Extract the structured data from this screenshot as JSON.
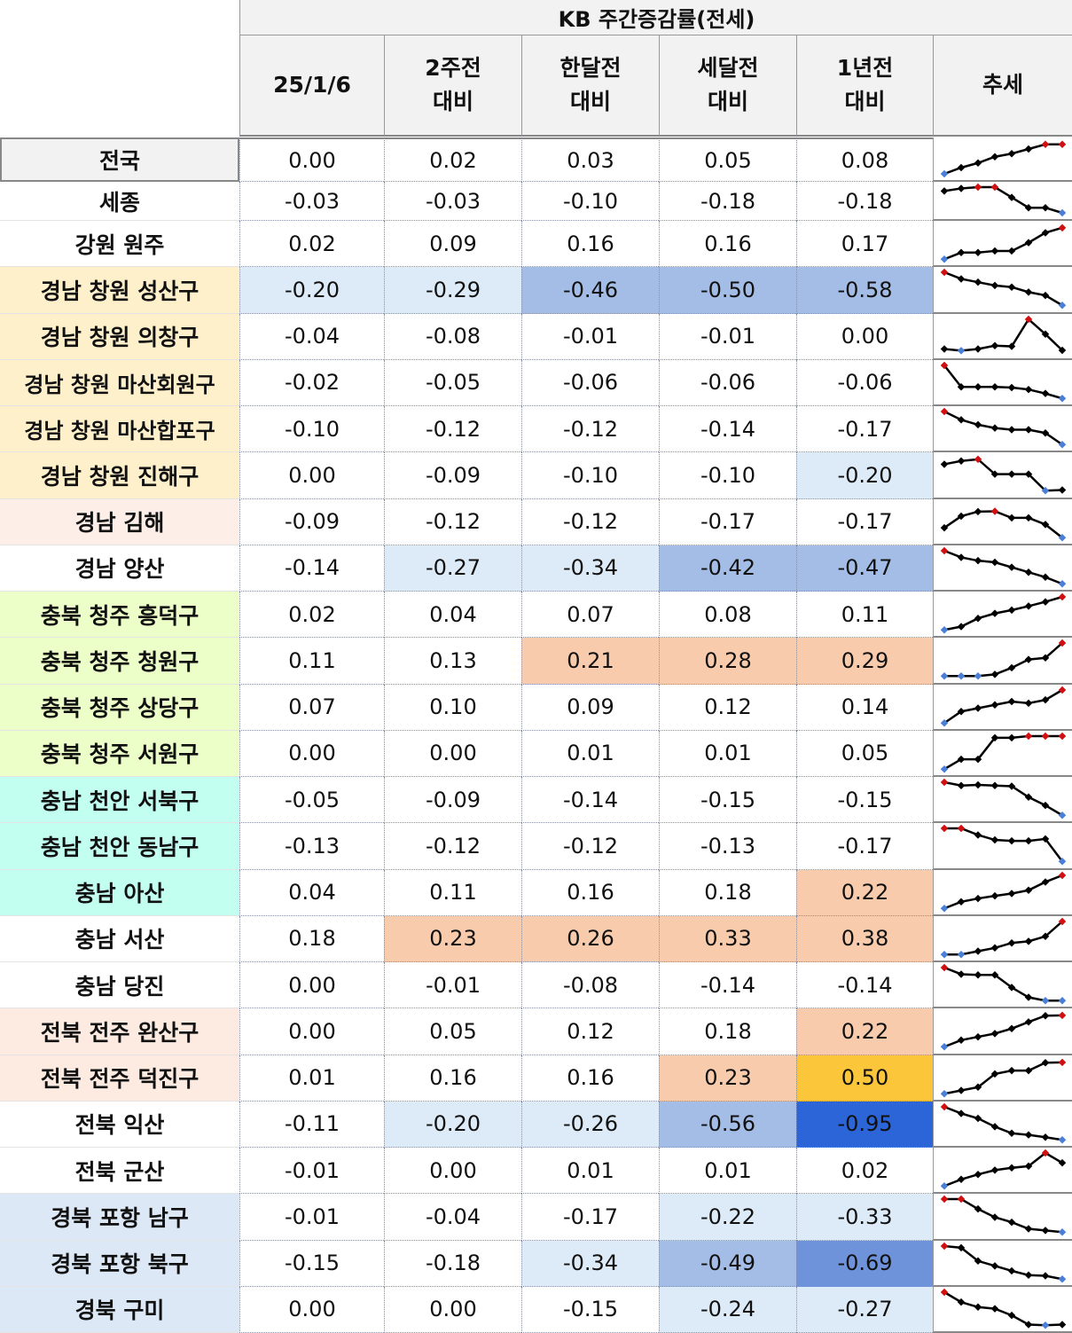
{
  "title": "KB 주간증감률(전세)",
  "headers": [
    "25/1/6",
    "2주전\n대비",
    "한달전\n대비",
    "세달전\n대비",
    "1년전\n대비",
    "추세"
  ],
  "colors": {
    "label_national": "#f2f2f2",
    "label_changwon": "#fff0cc",
    "label_gimhae": "#fdeee8",
    "label_chungbuk": "#ecffc8",
    "label_chungnam": "#c2fff0",
    "label_jeonju": "#fdebe2",
    "label_gyeongbuk": "#dce8f5",
    "neg_light": "#ddeaf7",
    "neg_mid": "#a4bde6",
    "neg_strong": "#6f93db",
    "neg_max": "#2b65d8",
    "pos_mid": "#f8cbad",
    "pos_max": "#fbc63a",
    "trend_max": "#d01010",
    "trend_min": "#4a7fd8"
  },
  "rows": [
    {
      "label": "전국",
      "group": "national",
      "values": [
        "0.00",
        "0.02",
        "0.03",
        "0.05",
        "0.08"
      ],
      "trend": [
        0,
        0.2,
        0.35,
        0.55,
        0.65,
        0.8,
        0.95,
        0.95
      ]
    },
    {
      "label": "세종",
      "group": "",
      "values": [
        "-0.03",
        "-0.03",
        "-0.10",
        "-0.18",
        "-0.18"
      ],
      "trend": [
        0.85,
        0.95,
        1,
        1,
        0.6,
        0.2,
        0.2,
        0
      ]
    },
    {
      "label": "강원 원주",
      "group": "",
      "values": [
        "0.02",
        "0.09",
        "0.16",
        "0.16",
        "0.17"
      ],
      "trend": [
        0,
        0.2,
        0.2,
        0.25,
        0.25,
        0.5,
        0.8,
        0.95
      ]
    },
    {
      "label": "경남 창원 성산구",
      "group": "changwon",
      "values": [
        "-0.20",
        "-0.29",
        "-0.46",
        "-0.50",
        "-0.58"
      ],
      "trend": [
        1,
        0.8,
        0.7,
        0.6,
        0.55,
        0.4,
        0.3,
        0
      ]
    },
    {
      "label": "경남 창원 의창구",
      "group": "changwon",
      "values": [
        "-0.04",
        "-0.08",
        "-0.01",
        "-0.01",
        "0.00"
      ],
      "trend": [
        0.1,
        0.05,
        0.1,
        0.2,
        0.18,
        1,
        0.55,
        0.06
      ]
    },
    {
      "label": "경남 창원 마산회원구",
      "group": "changwon",
      "values": [
        "-0.02",
        "-0.05",
        "-0.06",
        "-0.06",
        "-0.06"
      ],
      "trend": [
        1,
        0.35,
        0.35,
        0.35,
        0.33,
        0.27,
        0.15,
        0
      ]
    },
    {
      "label": "경남 창원 마산합포구",
      "group": "changwon",
      "values": [
        "-0.10",
        "-0.12",
        "-0.12",
        "-0.14",
        "-0.17"
      ],
      "trend": [
        1,
        0.75,
        0.6,
        0.5,
        0.45,
        0.45,
        0.35,
        0
      ]
    },
    {
      "label": "경남 창원 진해구",
      "group": "changwon",
      "values": [
        "0.00",
        "-0.09",
        "-0.10",
        "-0.10",
        "-0.20"
      ],
      "trend": [
        0.8,
        0.9,
        0.95,
        0.5,
        0.5,
        0.5,
        0,
        0.02
      ]
    },
    {
      "label": "경남 김해",
      "group": "gimhae",
      "values": [
        "-0.09",
        "-0.12",
        "-0.12",
        "-0.17",
        "-0.17"
      ],
      "trend": [
        0.3,
        0.65,
        0.79,
        0.8,
        0.6,
        0.6,
        0.4,
        0
      ]
    },
    {
      "label": "경남 양산",
      "group": "",
      "values": [
        "-0.14",
        "-0.27",
        "-0.34",
        "-0.42",
        "-0.47"
      ],
      "trend": [
        1,
        0.8,
        0.7,
        0.65,
        0.5,
        0.35,
        0.2,
        0
      ]
    },
    {
      "label": "충북 청주 흥덕구",
      "group": "chungbuk",
      "values": [
        "0.02",
        "0.04",
        "0.07",
        "0.08",
        "0.11"
      ],
      "trend": [
        0,
        0.1,
        0.35,
        0.5,
        0.6,
        0.72,
        0.85,
        1
      ]
    },
    {
      "label": "충북 청주 청원구",
      "group": "chungbuk",
      "values": [
        "0.11",
        "0.13",
        "0.21",
        "0.28",
        "0.29"
      ],
      "trend": [
        0,
        0,
        0,
        0.05,
        0.25,
        0.5,
        0.55,
        1
      ]
    },
    {
      "label": "충북 청주 상당구",
      "group": "chungbuk",
      "values": [
        "0.07",
        "0.10",
        "0.09",
        "0.12",
        "0.14"
      ],
      "trend": [
        0,
        0.35,
        0.45,
        0.55,
        0.65,
        0.6,
        0.7,
        1
      ]
    },
    {
      "label": "충북 청주 서원구",
      "group": "chungbuk",
      "values": [
        "0.00",
        "0.00",
        "0.01",
        "0.01",
        "0.05"
      ],
      "trend": [
        0,
        0.3,
        0.3,
        0.95,
        0.95,
        1,
        1,
        1
      ]
    },
    {
      "label": "충남 천안 서북구",
      "group": "chungnam",
      "values": [
        "-0.05",
        "-0.09",
        "-0.14",
        "-0.15",
        "-0.15"
      ],
      "trend": [
        1,
        0.9,
        0.92,
        0.9,
        0.88,
        0.55,
        0.3,
        0
      ]
    },
    {
      "label": "충남 천안 동남구",
      "group": "chungnam",
      "values": [
        "-0.13",
        "-0.12",
        "-0.12",
        "-0.13",
        "-0.17"
      ],
      "trend": [
        1,
        1,
        0.8,
        0.65,
        0.62,
        0.62,
        0.68,
        0
      ]
    },
    {
      "label": "충남 아산",
      "group": "chungnam",
      "values": [
        "0.04",
        "0.11",
        "0.16",
        "0.18",
        "0.22"
      ],
      "trend": [
        0,
        0.2,
        0.3,
        0.38,
        0.45,
        0.55,
        0.8,
        1
      ]
    },
    {
      "label": "충남 서산",
      "group": "",
      "values": [
        "0.18",
        "0.23",
        "0.26",
        "0.33",
        "0.38"
      ],
      "trend": [
        0,
        0,
        0.1,
        0.2,
        0.35,
        0.4,
        0.55,
        1
      ]
    },
    {
      "label": "충남 당진",
      "group": "",
      "values": [
        "0.00",
        "-0.01",
        "-0.08",
        "-0.14",
        "-0.14"
      ],
      "trend": [
        1,
        0.8,
        0.78,
        0.78,
        0.4,
        0.1,
        0,
        0
      ]
    },
    {
      "label": "전북 전주 완산구",
      "group": "jeonju",
      "values": [
        "0.00",
        "0.05",
        "0.12",
        "0.18",
        "0.22"
      ],
      "trend": [
        0,
        0.2,
        0.3,
        0.4,
        0.55,
        0.75,
        0.94,
        0.95
      ]
    },
    {
      "label": "전북 전주 덕진구",
      "group": "jeonju",
      "values": [
        "0.01",
        "0.16",
        "0.16",
        "0.23",
        "0.50"
      ],
      "trend": [
        0,
        0.1,
        0.2,
        0.6,
        0.7,
        0.7,
        0.94,
        0.95
      ]
    },
    {
      "label": "전북 익산",
      "group": "",
      "values": [
        "-0.11",
        "-0.20",
        "-0.26",
        "-0.56",
        "-0.95"
      ],
      "trend": [
        1,
        0.8,
        0.65,
        0.4,
        0.2,
        0.15,
        0.08,
        0
      ]
    },
    {
      "label": "전북 군산",
      "group": "",
      "values": [
        "-0.01",
        "0.00",
        "0.01",
        "0.01",
        "0.02"
      ],
      "trend": [
        0,
        0.2,
        0.35,
        0.48,
        0.55,
        0.6,
        1,
        0.7
      ]
    },
    {
      "label": "경북 포항 남구",
      "group": "gyeongbuk",
      "values": [
        "-0.01",
        "-0.04",
        "-0.17",
        "-0.22",
        "-0.33"
      ],
      "trend": [
        1,
        1,
        0.7,
        0.45,
        0.3,
        0.1,
        0.05,
        0
      ]
    },
    {
      "label": "경북 포항 북구",
      "group": "gyeongbuk",
      "values": [
        "-0.15",
        "-0.18",
        "-0.34",
        "-0.49",
        "-0.69"
      ],
      "trend": [
        1,
        0.95,
        0.55,
        0.4,
        0.25,
        0.12,
        0.1,
        0
      ]
    },
    {
      "label": "경북 구미",
      "group": "gyeongbuk",
      "values": [
        "0.00",
        "0.00",
        "-0.15",
        "-0.24",
        "-0.27"
      ],
      "trend": [
        1,
        0.7,
        0.55,
        0.5,
        0.3,
        0.02,
        0,
        0.02
      ]
    }
  ]
}
